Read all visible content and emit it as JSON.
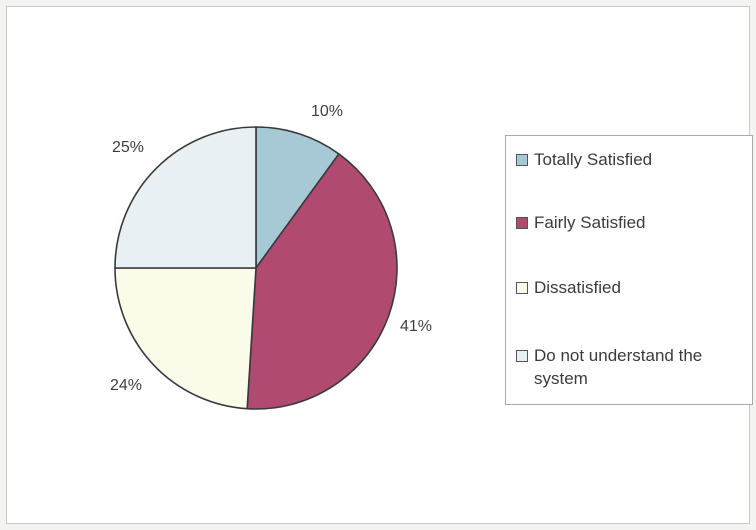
{
  "chart_data": {
    "type": "pie",
    "title": "",
    "start_angle_deg": 0,
    "direction": "clockwise",
    "slices": [
      {
        "label": "Totally Satisfied",
        "value": 10,
        "percent_label": "10%",
        "color": "#a7c9d6"
      },
      {
        "label": "Fairly Satisfied",
        "value": 41,
        "percent_label": "41%",
        "color": "#b04a70"
      },
      {
        "label": "Dissatisfied",
        "value": 24,
        "percent_label": "24%",
        "color": "#fbfbe9"
      },
      {
        "label": "Do not understand the system",
        "value": 25,
        "percent_label": "25%",
        "color": "#e9f0f4"
      }
    ],
    "legend_position": "right"
  }
}
